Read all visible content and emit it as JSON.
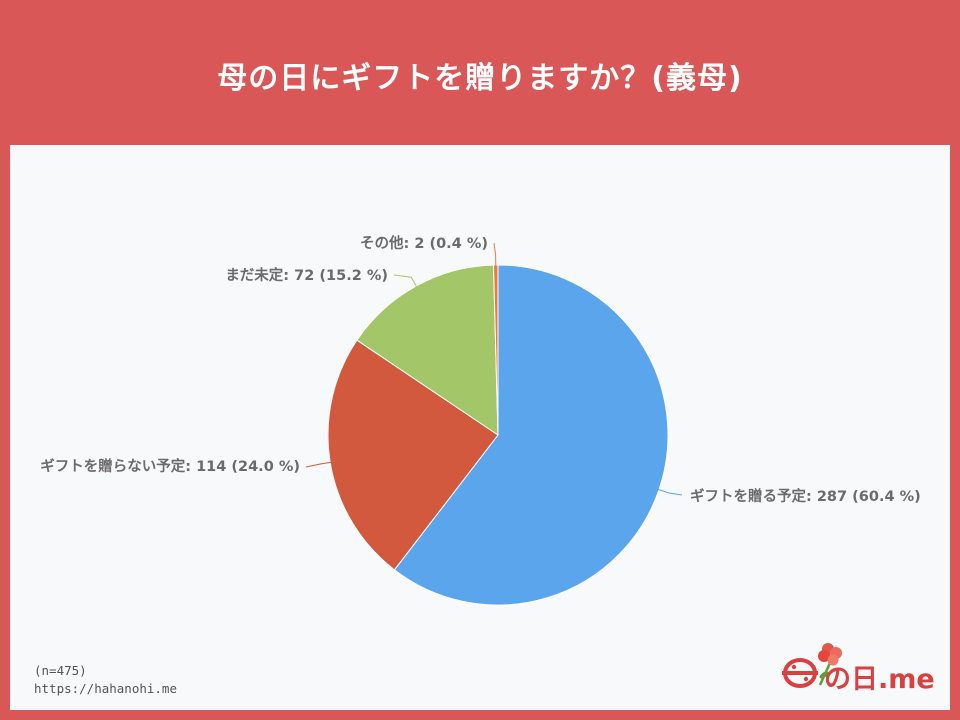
{
  "header": {
    "title": "母の日にギフトを贈りますか？(義母)"
  },
  "footer": {
    "sample_note": "(n=475)",
    "url": "https://hahanohi.me"
  },
  "logo": {
    "text": "の日.me",
    "color": "#d94040"
  },
  "chart_data": {
    "type": "pie",
    "title": "母の日にギフトを贈りますか？(義母)",
    "total": 475,
    "slices": [
      {
        "label": "ギフトを贈る予定",
        "value": 287,
        "percent": "60.4 %",
        "color": "#5aa5ec"
      },
      {
        "label": "ギフトを贈らない予定",
        "value": 114,
        "percent": "24.0 %",
        "color": "#d2583e"
      },
      {
        "label": "まだ未定",
        "value": 72,
        "percent": "15.2 %",
        "color": "#a3c768"
      },
      {
        "label": "その他",
        "value": 2,
        "percent": "0.4 %",
        "color": "#ee7a3a"
      }
    ]
  }
}
